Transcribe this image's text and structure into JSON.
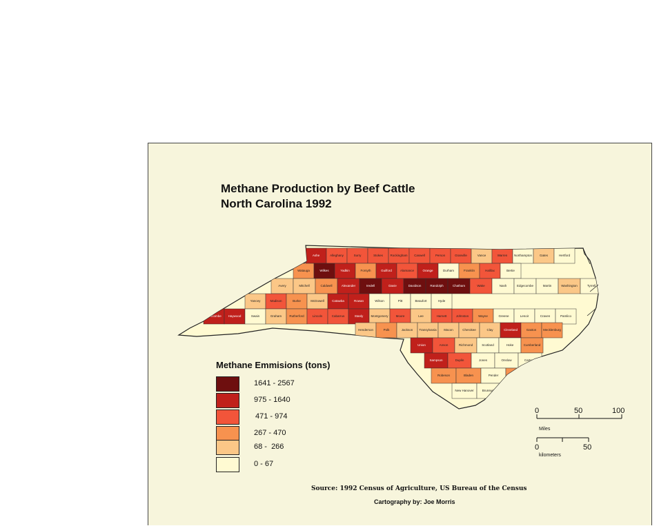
{
  "title": {
    "line1": "Methane Production by Beef Cattle",
    "line2": "North Carolina 1992"
  },
  "legend": {
    "title": "Methane Emmisions (tons)",
    "classes": [
      {
        "label": "1641 - 2567",
        "color": "#6e0f0f"
      },
      {
        "label": "975 - 1640",
        "color": "#c0201b"
      },
      {
        "label": "471 - 974",
        "color": "#f2553a"
      },
      {
        "label": "267 - 470",
        "color": "#f7924f"
      },
      {
        "label": "68 -  266",
        "color": "#fbc787"
      },
      {
        "label": "0 - 67",
        "color": "#fffad2"
      }
    ]
  },
  "scale_bars": {
    "miles": {
      "ticks": [
        "0",
        "50",
        "100"
      ],
      "unit": "Miles"
    },
    "kilometers": {
      "ticks": [
        "0",
        "50"
      ],
      "unit": "kilometers"
    }
  },
  "source": "Source: 1992 Census of Agriculture, US Bureau of the Census",
  "credit": "Cartography by: Joe Morris",
  "counties": [
    {
      "name": "Ashe",
      "class": 1
    },
    {
      "name": "Alleghany",
      "class": 2
    },
    {
      "name": "Surry",
      "class": 2
    },
    {
      "name": "Stokes",
      "class": 2
    },
    {
      "name": "Rockingham",
      "class": 2
    },
    {
      "name": "Caswell",
      "class": 2
    },
    {
      "name": "Person",
      "class": 2
    },
    {
      "name": "Granville",
      "class": 2
    },
    {
      "name": "Vance",
      "class": 4
    },
    {
      "name": "Warren",
      "class": 2
    },
    {
      "name": "Northampton",
      "class": 5
    },
    {
      "name": "Gates",
      "class": 4
    },
    {
      "name": "Hertford",
      "class": 5
    },
    {
      "name": "Watauga",
      "class": 3
    },
    {
      "name": "Wilkes",
      "class": 0
    },
    {
      "name": "Yadkin",
      "class": 1
    },
    {
      "name": "Forsyth",
      "class": 3
    },
    {
      "name": "Guilford",
      "class": 1
    },
    {
      "name": "Alamance",
      "class": 2
    },
    {
      "name": "Orange",
      "class": 1
    },
    {
      "name": "Durham",
      "class": 5
    },
    {
      "name": "Franklin",
      "class": 3
    },
    {
      "name": "Halifax",
      "class": 2
    },
    {
      "name": "Bertie",
      "class": 5
    },
    {
      "name": "Avery",
      "class": 4
    },
    {
      "name": "Mitchell",
      "class": 4
    },
    {
      "name": "Caldwell",
      "class": 3
    },
    {
      "name": "Alexander",
      "class": 1
    },
    {
      "name": "Iredell",
      "class": 0
    },
    {
      "name": "Davie",
      "class": 1
    },
    {
      "name": "Davidson",
      "class": 0
    },
    {
      "name": "Randolph",
      "class": 0
    },
    {
      "name": "Chatham",
      "class": 0
    },
    {
      "name": "Wake",
      "class": 2
    },
    {
      "name": "Nash",
      "class": 5
    },
    {
      "name": "Edgecombe",
      "class": 5
    },
    {
      "name": "Martin",
      "class": 5
    },
    {
      "name": "Washington",
      "class": 4
    },
    {
      "name": "Tyrrell",
      "class": 5
    },
    {
      "name": "Dare",
      "class": 5
    },
    {
      "name": "Yancey",
      "class": 4
    },
    {
      "name": "Madison",
      "class": 2
    },
    {
      "name": "Burke",
      "class": 3
    },
    {
      "name": "McDowell",
      "class": 4
    },
    {
      "name": "Catawba",
      "class": 1
    },
    {
      "name": "Rowan",
      "class": 1
    },
    {
      "name": "Wilson",
      "class": 5
    },
    {
      "name": "Pitt",
      "class": 5
    },
    {
      "name": "Beaufort",
      "class": 5
    },
    {
      "name": "Hyde",
      "class": 5
    },
    {
      "name": "Buncombe",
      "class": 1
    },
    {
      "name": "Haywood",
      "class": 1
    },
    {
      "name": "Swain",
      "class": 5
    },
    {
      "name": "Graham",
      "class": 4
    },
    {
      "name": "Rutherford",
      "class": 3
    },
    {
      "name": "Lincoln",
      "class": 2
    },
    {
      "name": "Cabarrus",
      "class": 2
    },
    {
      "name": "Stanly",
      "class": 1
    },
    {
      "name": "Montgomery",
      "class": 4
    },
    {
      "name": "Moore",
      "class": 2
    },
    {
      "name": "Lee",
      "class": 4
    },
    {
      "name": "Harnett",
      "class": 2
    },
    {
      "name": "Johnston",
      "class": 2
    },
    {
      "name": "Wayne",
      "class": 3
    },
    {
      "name": "Greene",
      "class": 5
    },
    {
      "name": "Lenoir",
      "class": 5
    },
    {
      "name": "Craven",
      "class": 5
    },
    {
      "name": "Pamlico",
      "class": 5
    },
    {
      "name": "Henderson",
      "class": 4
    },
    {
      "name": "Polk",
      "class": 3
    },
    {
      "name": "Jackson",
      "class": 4
    },
    {
      "name": "Transylvania",
      "class": 4
    },
    {
      "name": "Macon",
      "class": 4
    },
    {
      "name": "Cherokee",
      "class": 4
    },
    {
      "name": "Clay",
      "class": 4
    },
    {
      "name": "Cleveland",
      "class": 1
    },
    {
      "name": "Gaston",
      "class": 3
    },
    {
      "name": "Mecklenburg",
      "class": 3
    },
    {
      "name": "Union",
      "class": 1
    },
    {
      "name": "Anson",
      "class": 2
    },
    {
      "name": "Richmond",
      "class": 4
    },
    {
      "name": "Scotland",
      "class": 5
    },
    {
      "name": "Hoke",
      "class": 5
    },
    {
      "name": "Cumberland",
      "class": 3
    },
    {
      "name": "Sampson",
      "class": 1
    },
    {
      "name": "Duplin",
      "class": 2
    },
    {
      "name": "Jones",
      "class": 5
    },
    {
      "name": "Onslow",
      "class": 5
    },
    {
      "name": "Carteret",
      "class": 5
    },
    {
      "name": "Robeson",
      "class": 3
    },
    {
      "name": "Bladen",
      "class": 3
    },
    {
      "name": "Pender",
      "class": 5
    },
    {
      "name": "Columbus",
      "class": 3
    },
    {
      "name": "New Hanover",
      "class": 5
    },
    {
      "name": "Brunswick",
      "class": 5
    }
  ]
}
